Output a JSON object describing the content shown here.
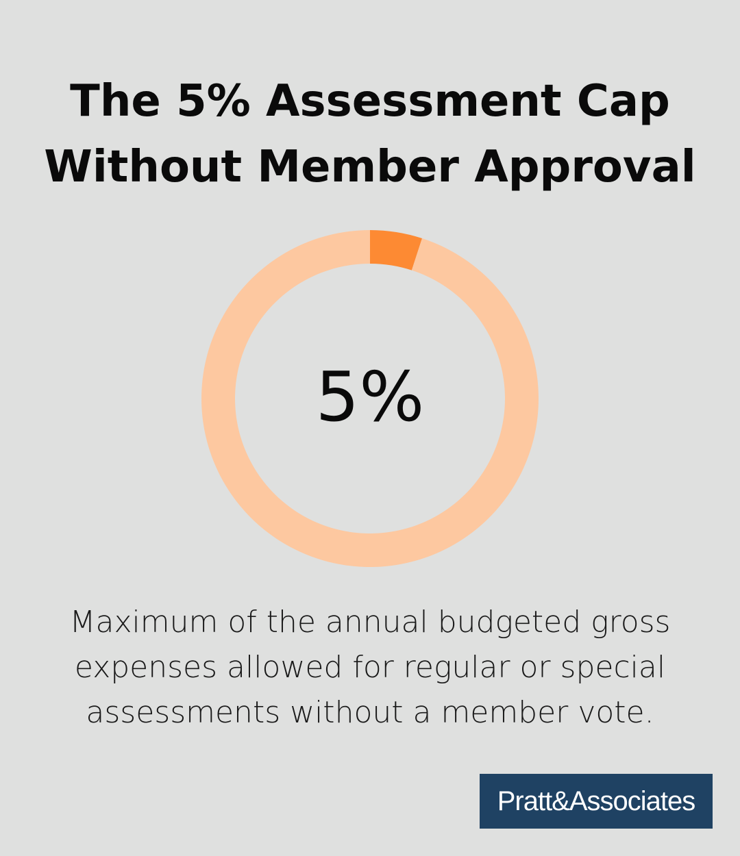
{
  "chart_data": {
    "type": "pie",
    "title": "The 5% Assessment Cap Without Member Approval",
    "title_lines": [
      "The 5% Assessment Cap",
      "Without Member Approval"
    ],
    "values": [
      5,
      95
    ],
    "colors": [
      "#fd8a33",
      "#fdc8a0"
    ],
    "donut": true,
    "center_label": "5%",
    "description_lines": [
      "Maximum of the annual budgeted gross",
      "expenses allowed for regular or special",
      "assessments without a member vote."
    ]
  },
  "logo": {
    "text": "Pratt&Associates",
    "background": "#1f4263"
  },
  "background": "#dfe0df"
}
